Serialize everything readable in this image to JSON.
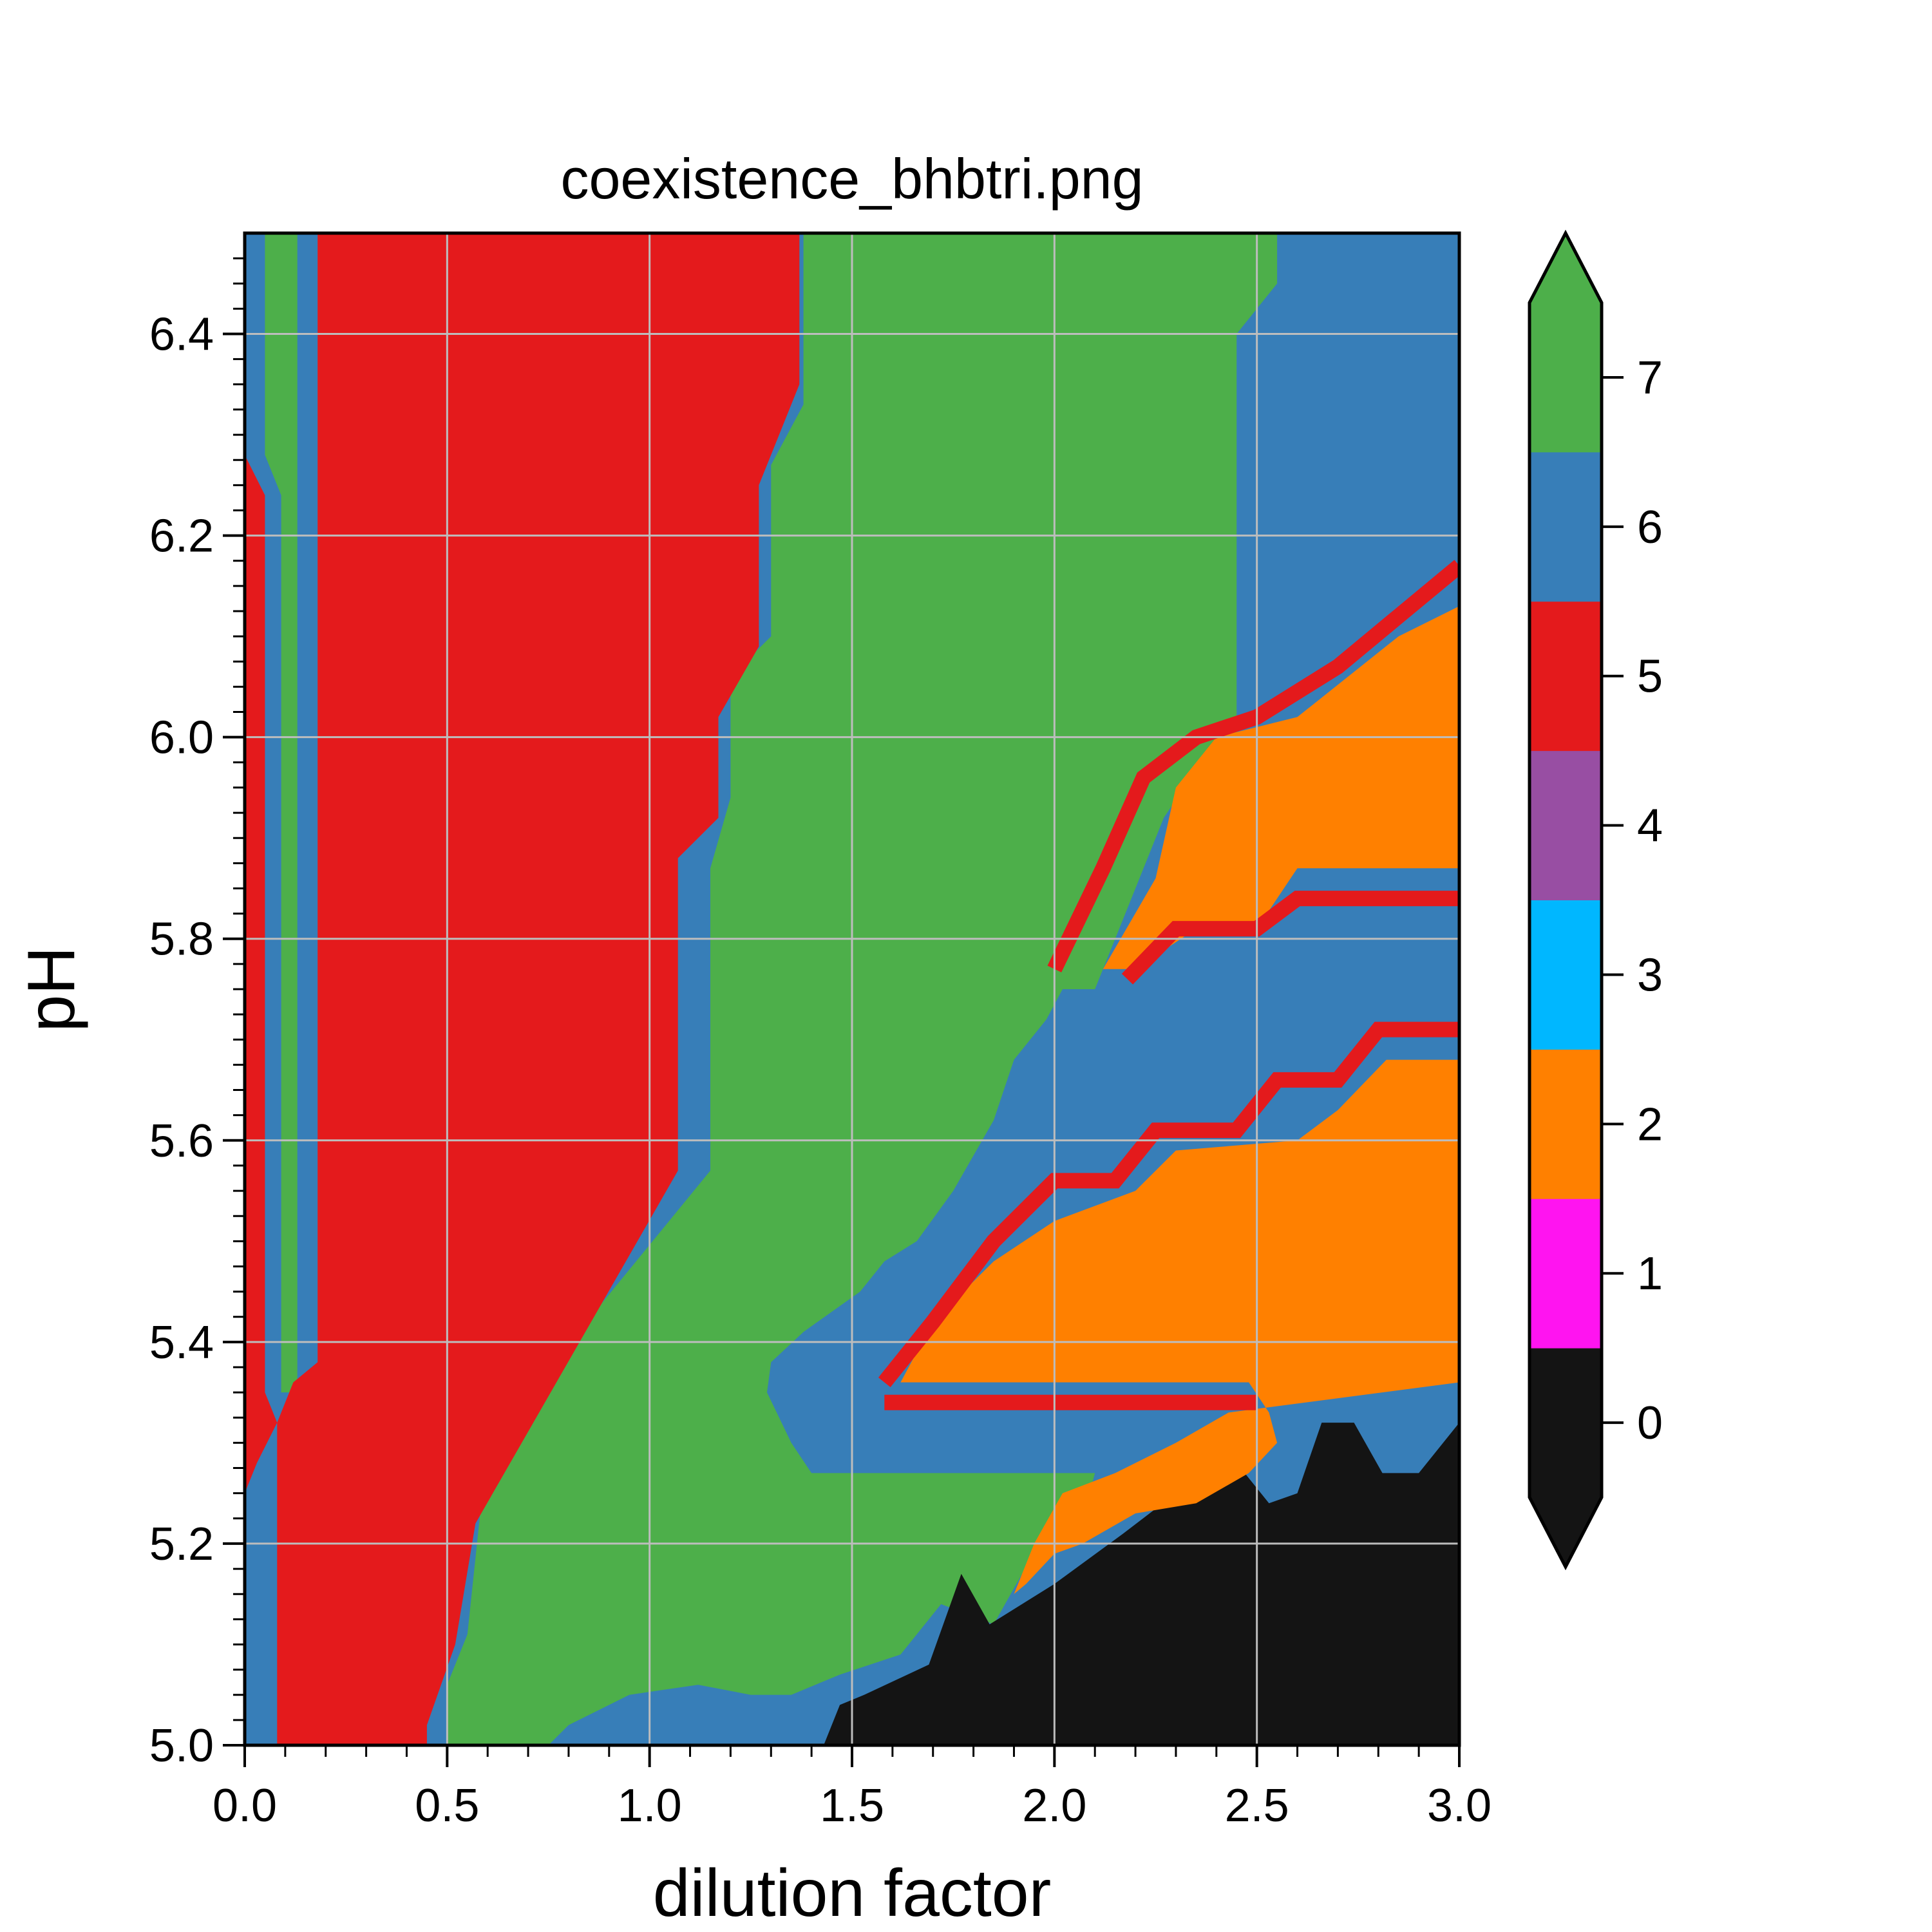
{
  "chart_data": {
    "type": "contourf",
    "title": "coexistence_bhbtri.png",
    "xlabel": "dilution factor",
    "ylabel": "pH",
    "xlim": [
      0.0,
      3.0
    ],
    "ylim": [
      5.0,
      6.5
    ],
    "grid": true,
    "x_ticks": [
      "0.0",
      "0.5",
      "1.0",
      "1.5",
      "2.0",
      "2.5",
      "3.0"
    ],
    "y_ticks": [
      "5.0",
      "5.2",
      "5.4",
      "5.6",
      "5.8",
      "6.0",
      "6.2",
      "6.4"
    ],
    "colorbar": {
      "levels": [
        0,
        1,
        2,
        3,
        4,
        5,
        6,
        7
      ],
      "labels": [
        "0",
        "1",
        "2",
        "3",
        "4",
        "5",
        "6",
        "7"
      ],
      "extend": "both",
      "colors": [
        "#141414",
        "#ff14f0",
        "#ff8000",
        "#00b7ff",
        "#984ea3",
        "#e41a1c",
        "#377eb8",
        "#4daf4a"
      ]
    },
    "regions": [
      {
        "level": 6,
        "color": "#377eb8",
        "polygon": [
          [
            0.0,
            5.0
          ],
          [
            3.0,
            5.0
          ],
          [
            3.0,
            6.5
          ],
          [
            0.0,
            6.5
          ]
        ]
      },
      {
        "level": 7,
        "color": "#4daf4a",
        "polygon": [
          [
            1.38,
            6.5
          ],
          [
            2.55,
            6.5
          ],
          [
            2.55,
            6.45
          ],
          [
            2.45,
            6.4
          ],
          [
            2.45,
            5.99
          ],
          [
            2.37,
            5.98
          ],
          [
            2.27,
            5.92
          ],
          [
            2.2,
            5.85
          ],
          [
            2.1,
            5.75
          ],
          [
            2.02,
            5.75
          ],
          [
            1.98,
            5.72
          ],
          [
            1.9,
            5.68
          ],
          [
            1.85,
            5.62
          ],
          [
            1.75,
            5.55
          ],
          [
            1.66,
            5.5
          ],
          [
            1.58,
            5.48
          ],
          [
            1.52,
            5.45
          ],
          [
            1.45,
            5.43
          ],
          [
            1.38,
            5.41
          ],
          [
            1.3,
            5.38
          ],
          [
            1.29,
            5.35
          ],
          [
            1.35,
            5.3
          ],
          [
            1.4,
            5.27
          ],
          [
            1.55,
            5.27
          ],
          [
            1.7,
            5.27
          ],
          [
            2.0,
            5.27
          ],
          [
            2.1,
            5.27
          ],
          [
            2.06,
            5.21
          ],
          [
            1.92,
            5.17
          ],
          [
            1.85,
            5.12
          ],
          [
            1.72,
            5.14
          ],
          [
            1.62,
            5.09
          ],
          [
            1.47,
            5.07
          ],
          [
            1.35,
            5.05
          ],
          [
            1.25,
            5.05
          ],
          [
            1.12,
            5.06
          ],
          [
            0.95,
            5.05
          ],
          [
            0.8,
            5.02
          ],
          [
            0.75,
            5.0
          ],
          [
            0.5,
            5.0
          ],
          [
            0.5,
            5.06
          ],
          [
            0.55,
            5.11
          ],
          [
            0.6,
            5.3
          ],
          [
            1.15,
            5.57
          ],
          [
            1.15,
            5.87
          ],
          [
            1.2,
            5.94
          ],
          [
            1.2,
            6.06
          ],
          [
            1.3,
            6.1
          ],
          [
            1.3,
            6.27
          ],
          [
            1.38,
            6.33
          ]
        ]
      },
      {
        "level": 7,
        "color": "#4daf4a",
        "polygon": [
          [
            0.05,
            6.5
          ],
          [
            0.13,
            6.5
          ],
          [
            0.13,
            5.35
          ],
          [
            0.09,
            5.35
          ],
          [
            0.09,
            6.24
          ],
          [
            0.05,
            6.28
          ]
        ]
      },
      {
        "level": 5,
        "color": "#e41a1c",
        "polygon": [
          [
            0.18,
            6.5
          ],
          [
            1.37,
            6.5
          ],
          [
            1.37,
            6.35
          ],
          [
            1.27,
            6.25
          ],
          [
            1.27,
            6.09
          ],
          [
            1.17,
            6.02
          ],
          [
            1.17,
            5.92
          ],
          [
            1.07,
            5.88
          ],
          [
            1.07,
            5.57
          ],
          [
            0.57,
            5.22
          ],
          [
            0.52,
            5.1
          ],
          [
            0.45,
            5.02
          ],
          [
            0.45,
            5.0
          ],
          [
            0.08,
            5.0
          ],
          [
            0.08,
            5.32
          ],
          [
            0.12,
            5.36
          ],
          [
            0.18,
            5.38
          ]
        ]
      },
      {
        "level": 5,
        "color": "#e41a1c",
        "polygon": [
          [
            0.0,
            6.28
          ],
          [
            0.05,
            6.24
          ],
          [
            0.05,
            5.35
          ],
          [
            0.08,
            5.32
          ],
          [
            0.03,
            5.28
          ],
          [
            0.0,
            5.25
          ]
        ]
      },
      {
        "level": 0,
        "color": "#141414",
        "polygon": [
          [
            1.35,
            5.0
          ],
          [
            3.0,
            5.0
          ],
          [
            3.0,
            5.32
          ],
          [
            2.9,
            5.27
          ],
          [
            2.81,
            5.27
          ],
          [
            2.74,
            5.32
          ],
          [
            2.66,
            5.32
          ],
          [
            2.6,
            5.25
          ],
          [
            2.53,
            5.24
          ],
          [
            2.45,
            5.28
          ],
          [
            2.3,
            5.25
          ],
          [
            2.17,
            5.21
          ],
          [
            2.0,
            5.16
          ],
          [
            1.84,
            5.12
          ],
          [
            1.77,
            5.17
          ],
          [
            1.69,
            5.08
          ],
          [
            1.53,
            5.05
          ],
          [
            1.47,
            5.04
          ],
          [
            1.43,
            5.0
          ]
        ]
      },
      {
        "level": 2,
        "color": "#ff8000",
        "polygon": [
          [
            1.62,
            5.36
          ],
          [
            2.48,
            5.36
          ],
          [
            2.53,
            5.33
          ],
          [
            2.55,
            5.3
          ],
          [
            2.48,
            5.27
          ],
          [
            2.35,
            5.24
          ],
          [
            2.2,
            5.23
          ],
          [
            2.07,
            5.2
          ],
          [
            2.0,
            5.19
          ],
          [
            1.93,
            5.16
          ],
          [
            1.9,
            5.15
          ],
          [
            1.95,
            5.2
          ],
          [
            2.02,
            5.25
          ],
          [
            2.15,
            5.27
          ],
          [
            2.3,
            5.3
          ],
          [
            2.43,
            5.33
          ],
          [
            3.0,
            5.36
          ],
          [
            3.0,
            5.68
          ],
          [
            2.82,
            5.68
          ],
          [
            2.7,
            5.63
          ],
          [
            2.6,
            5.6
          ],
          [
            2.3,
            5.59
          ],
          [
            2.2,
            5.55
          ],
          [
            2.0,
            5.52
          ],
          [
            1.85,
            5.48
          ],
          [
            1.7,
            5.42
          ]
        ]
      },
      {
        "level": 2,
        "color": "#ff8000",
        "polygon": [
          [
            2.12,
            5.77
          ],
          [
            2.25,
            5.86
          ],
          [
            2.3,
            5.95
          ],
          [
            2.4,
            6.0
          ],
          [
            2.6,
            6.02
          ],
          [
            2.85,
            6.1
          ],
          [
            3.0,
            6.13
          ],
          [
            3.0,
            5.87
          ],
          [
            2.6,
            5.87
          ],
          [
            2.5,
            5.81
          ],
          [
            2.35,
            5.81
          ],
          [
            2.2,
            5.77
          ]
        ]
      }
    ],
    "boundaries": [
      {
        "level": 5,
        "color": "#e41a1c",
        "points": [
          [
            1.58,
            5.36
          ],
          [
            1.7,
            5.42
          ],
          [
            1.85,
            5.5
          ],
          [
            2.0,
            5.56
          ],
          [
            2.15,
            5.56
          ],
          [
            2.25,
            5.61
          ],
          [
            2.45,
            5.61
          ],
          [
            2.55,
            5.66
          ],
          [
            2.7,
            5.66
          ],
          [
            2.8,
            5.71
          ],
          [
            3.0,
            5.71
          ]
        ]
      },
      {
        "level": 5,
        "color": "#e41a1c",
        "points": [
          [
            1.58,
            5.34
          ],
          [
            2.5,
            5.34
          ]
        ]
      },
      {
        "level": 5,
        "color": "#e41a1c",
        "points": [
          [
            2.0,
            5.77
          ],
          [
            2.12,
            5.87
          ],
          [
            2.22,
            5.96
          ],
          [
            2.35,
            6.0
          ],
          [
            2.5,
            6.02
          ],
          [
            2.7,
            6.07
          ],
          [
            2.85,
            6.12
          ],
          [
            3.0,
            6.17
          ]
        ]
      },
      {
        "level": 5,
        "color": "#e41a1c",
        "points": [
          [
            2.18,
            5.76
          ],
          [
            2.3,
            5.81
          ],
          [
            2.5,
            5.81
          ],
          [
            2.6,
            5.84
          ],
          [
            3.0,
            5.84
          ]
        ]
      }
    ]
  }
}
